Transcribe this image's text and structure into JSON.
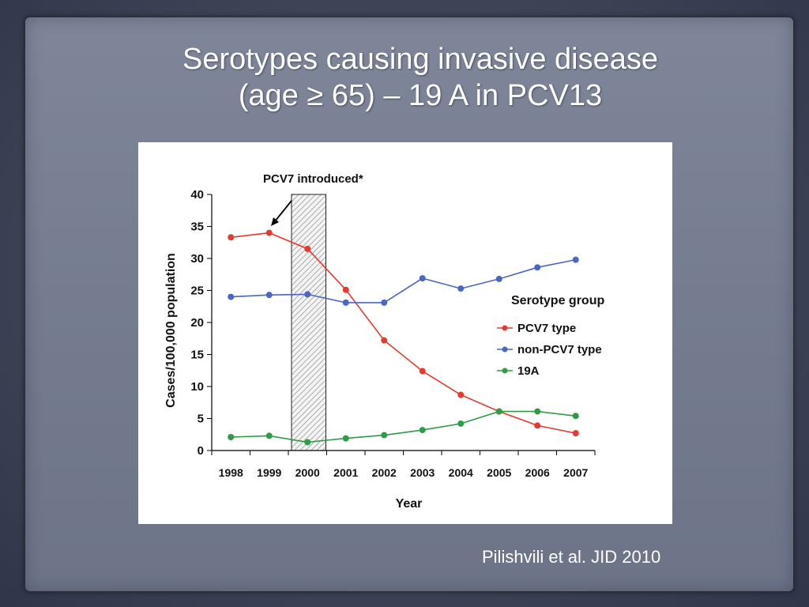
{
  "slide": {
    "title_line1": "Serotypes causing invasive disease",
    "title_line2": "(age ≥ 65) – 19 A in PCV13",
    "citation": "Pilishvili et al. JID 2010"
  },
  "chart_data": {
    "type": "line",
    "x": [
      1998,
      1999,
      2000,
      2001,
      2002,
      2003,
      2004,
      2005,
      2006,
      2007
    ],
    "categories": [
      "1998",
      "1999",
      "2000",
      "2001",
      "2002",
      "2003",
      "2004",
      "2005",
      "2006",
      "2007"
    ],
    "xlabel": "Year",
    "ylabel": "Cases/100,000 population",
    "ylim": [
      0,
      40
    ],
    "yticks": [
      0,
      5,
      10,
      15,
      20,
      25,
      30,
      35,
      40
    ],
    "grid": false,
    "annotation": "PCV7 introduced*",
    "shaded_period": "2000",
    "legend": {
      "title": "Serotype group",
      "position": "right"
    },
    "series": [
      {
        "name": "PCV7 type",
        "color": "#e8392e",
        "values": [
          33.3,
          34.0,
          31.5,
          25.1,
          17.2,
          12.4,
          8.7,
          6.1,
          3.9,
          2.7
        ]
      },
      {
        "name": "non-PCV7 type",
        "color": "#4a66c4",
        "values": [
          24.0,
          24.3,
          24.4,
          23.1,
          23.1,
          26.9,
          25.3,
          26.8,
          28.6,
          29.8
        ]
      },
      {
        "name": "19A",
        "color": "#2e9b46",
        "values": [
          2.1,
          2.3,
          1.3,
          1.9,
          2.4,
          3.2,
          4.2,
          6.1,
          6.1,
          5.4
        ]
      }
    ]
  }
}
